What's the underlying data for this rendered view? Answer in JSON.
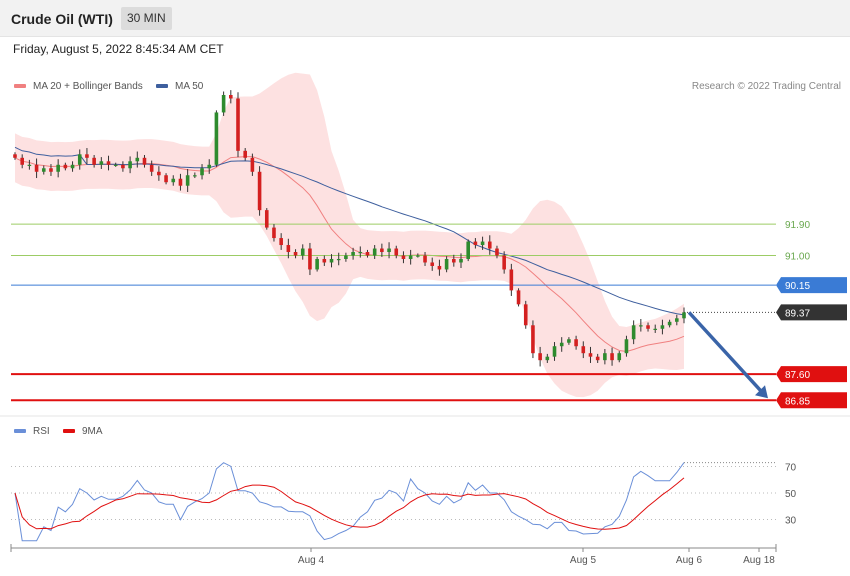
{
  "header": {
    "title": "Crude Oil (WTI)",
    "timeframe": "30 MIN",
    "datetime": "Friday, August 5, 2022 8:45:34 AM CET"
  },
  "legend_top": {
    "ma20_label": "MA 20 + Bollinger Bands",
    "ma50_label": "MA 50",
    "credit": "Research © 2022 Trading Central"
  },
  "legend_rsi": {
    "rsi_label": "RSI",
    "ma9_label": "9MA"
  },
  "colors": {
    "up": "#2e8b2e",
    "down": "#d42020",
    "bollinger_fill": "#fde1e1",
    "ma20": "#f08080",
    "ma50": "#3e5f9e",
    "resistance": "#9ccc65",
    "pivot": "#3a7bd5",
    "support": "#e01010",
    "current": "#333333",
    "arrow": "#3a64a8",
    "rsi": "#6a8fd8",
    "rsi_ma": "#e01010"
  },
  "chart_data": [
    {
      "type": "candlestick",
      "x_labels": [
        "Aug 4",
        "Aug 5",
        "Aug 6",
        "Aug 18"
      ],
      "ylim": [
        86.4,
        95.6
      ],
      "levels": [
        {
          "value": 91.9,
          "label": "91.90",
          "kind": "resistance"
        },
        {
          "value": 91.0,
          "label": "91.00",
          "kind": "resistance"
        },
        {
          "value": 90.15,
          "label": "90.15",
          "kind": "pivot"
        },
        {
          "value": 89.37,
          "label": "89.37",
          "kind": "current"
        },
        {
          "value": 87.6,
          "label": "87.60",
          "kind": "support"
        },
        {
          "value": 86.85,
          "label": "86.85",
          "kind": "support"
        }
      ],
      "forecast_arrow": {
        "from": 89.37,
        "to": 86.85
      },
      "close": [
        93.8,
        93.6,
        93.6,
        93.4,
        93.5,
        93.4,
        93.6,
        93.5,
        93.6,
        93.9,
        93.8,
        93.6,
        93.7,
        93.6,
        93.6,
        93.5,
        93.7,
        93.8,
        93.6,
        93.4,
        93.3,
        93.1,
        93.2,
        93.0,
        93.3,
        93.3,
        93.5,
        93.6,
        95.1,
        95.6,
        95.5,
        94.0,
        93.8,
        93.4,
        92.3,
        91.8,
        91.5,
        91.3,
        91.1,
        91.0,
        91.2,
        90.6,
        90.9,
        90.8,
        90.9,
        90.9,
        91.0,
        91.1,
        91.1,
        91.0,
        91.2,
        91.1,
        91.2,
        91.0,
        90.9,
        91.0,
        91.0,
        90.8,
        90.7,
        90.6,
        90.9,
        90.8,
        90.9,
        91.4,
        91.3,
        91.4,
        91.2,
        91.0,
        90.6,
        90.0,
        89.6,
        89.0,
        88.2,
        88.0,
        88.1,
        88.4,
        88.5,
        88.6,
        88.4,
        88.2,
        88.1,
        88.0,
        88.2,
        88.0,
        88.2,
        88.6,
        89.0,
        89.0,
        88.9,
        88.9,
        89.0,
        89.1,
        89.2,
        89.37
      ],
      "series": [
        {
          "name": "MA 20 + Bollinger Bands"
        },
        {
          "name": "MA 50"
        }
      ]
    },
    {
      "type": "line",
      "ylim": [
        10,
        90
      ],
      "yticks": [
        70,
        50,
        30
      ],
      "series": [
        {
          "name": "RSI"
        },
        {
          "name": "9MA"
        }
      ]
    }
  ]
}
